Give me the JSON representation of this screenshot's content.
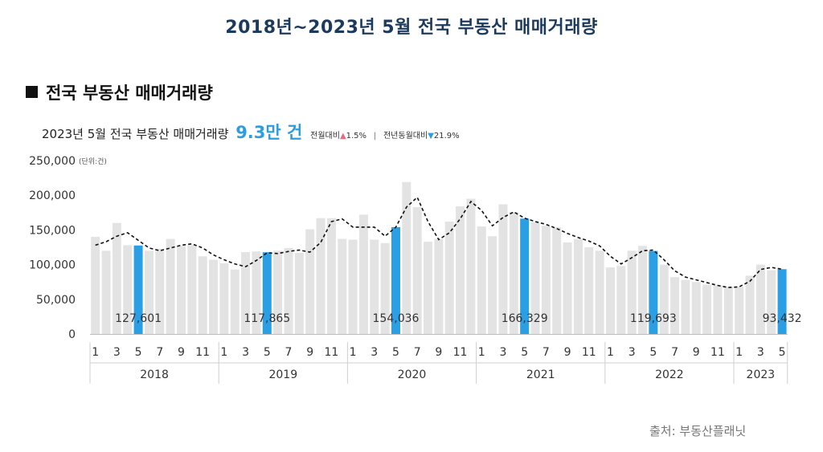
{
  "title": "2018년~2023년 5월 전국 부동산 매매거래량",
  "section_title": "전국 부동산 매매거래량",
  "summary": {
    "lead": "2023년 5월 전국 부동산 매매거래량",
    "headline": "9.3만 건",
    "mom_label": "전월대비",
    "mom_arrow": "▲",
    "mom_value": "1.5%",
    "separator": "|",
    "yoy_label": "전년동월대비",
    "yoy_arrow": "▼",
    "yoy_value": "21.9%"
  },
  "source": "출처: 부동산플래닛",
  "chart_data": {
    "type": "bar",
    "unit_label": "(단위:건)",
    "ylim": [
      0,
      250000
    ],
    "yticks": [
      "0",
      "50,000",
      "100,000",
      "150,000",
      "200,000",
      "250,000"
    ],
    "grid": false,
    "bar_color": "#e3e3e3",
    "highlight_color": "#2a9fe6",
    "line_style": "dashed black moving-average line",
    "years": [
      "2018",
      "2019",
      "2020",
      "2021",
      "2022",
      "2023"
    ],
    "month_ticks": [
      "1",
      "3",
      "5",
      "7",
      "9",
      "11"
    ],
    "month_ticks_last_year": [
      "1",
      "3",
      "5"
    ],
    "values": [
      140000,
      120000,
      160000,
      128000,
      127601,
      120000,
      123000,
      137000,
      127000,
      128000,
      112000,
      107000,
      102000,
      93000,
      118000,
      119000,
      117865,
      120000,
      124000,
      117000,
      151000,
      167000,
      167000,
      137000,
      136000,
      172000,
      136000,
      131000,
      154036,
      219000,
      183000,
      133000,
      137000,
      162000,
      184000,
      195000,
      155000,
      141000,
      187000,
      176000,
      166329,
      161000,
      156000,
      154000,
      132000,
      137000,
      125000,
      120000,
      96000,
      98000,
      120000,
      127000,
      119693,
      100000,
      82000,
      78000,
      75000,
      71000,
      70000,
      68000,
      68000,
      84000,
      100000,
      92000,
      93432
    ],
    "trend": [
      128000,
      133000,
      141000,
      146000,
      135000,
      124000,
      120000,
      124000,
      128000,
      130000,
      124000,
      114000,
      107000,
      101000,
      97000,
      106000,
      117000,
      116000,
      119000,
      121000,
      118000,
      132000,
      162000,
      166000,
      154000,
      154000,
      154000,
      141000,
      154000,
      183000,
      197000,
      162000,
      136000,
      146000,
      166000,
      191000,
      178000,
      156000,
      168000,
      176000,
      167000,
      162000,
      158000,
      152000,
      145000,
      139000,
      134000,
      127000,
      112000,
      101000,
      110000,
      120000,
      121000,
      107000,
      91000,
      82000,
      78000,
      74000,
      70000,
      67000,
      68000,
      76000,
      93000,
      96000,
      93432
    ],
    "highlight_labels": [
      "127,601",
      "117,865",
      "154,036",
      "166,329",
      "119,693",
      "93,432"
    ]
  }
}
